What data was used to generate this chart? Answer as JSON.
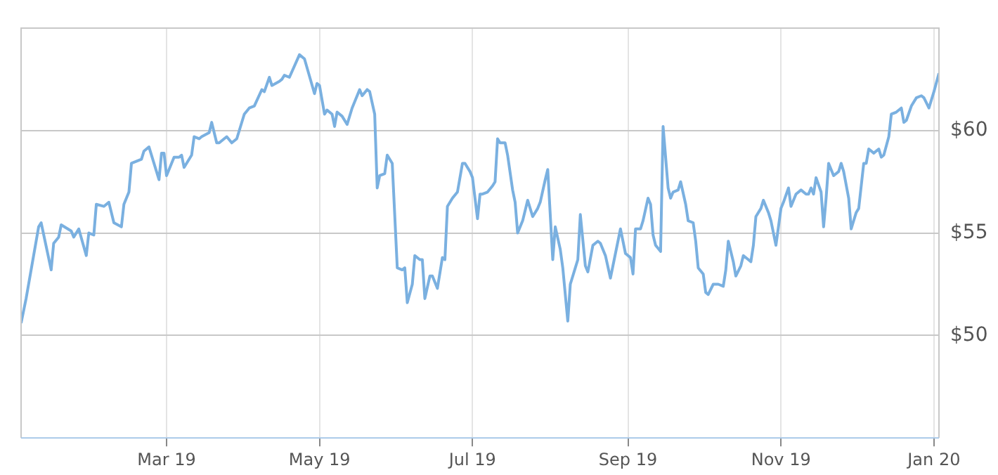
{
  "chart_data": {
    "type": "line",
    "x": [
      "2019-01-02",
      "2019-01-04",
      "2019-01-06",
      "2019-01-09",
      "2019-01-10",
      "2019-01-14",
      "2019-01-15",
      "2019-01-17",
      "2019-01-18",
      "2019-01-22",
      "2019-01-23",
      "2019-01-25",
      "2019-01-28",
      "2019-01-29",
      "2019-01-31",
      "2019-02-01",
      "2019-02-04",
      "2019-02-06",
      "2019-02-08",
      "2019-02-11",
      "2019-02-12",
      "2019-02-14",
      "2019-02-15",
      "2019-02-19",
      "2019-02-20",
      "2019-02-22",
      "2019-02-26",
      "2019-02-27",
      "2019-02-28",
      "2019-03-01",
      "2019-03-04",
      "2019-03-06",
      "2019-03-07",
      "2019-03-08",
      "2019-03-11",
      "2019-03-12",
      "2019-03-14",
      "2019-03-15",
      "2019-03-18",
      "2019-03-19",
      "2019-03-21",
      "2019-03-22",
      "2019-03-25",
      "2019-03-27",
      "2019-03-29",
      "2019-04-01",
      "2019-04-03",
      "2019-04-05",
      "2019-04-08",
      "2019-04-09",
      "2019-04-11",
      "2019-04-12",
      "2019-04-15",
      "2019-04-16",
      "2019-04-17",
      "2019-04-19",
      "2019-04-23",
      "2019-04-25",
      "2019-04-29",
      "2019-04-30",
      "2019-05-01",
      "2019-05-03",
      "2019-05-04",
      "2019-05-06",
      "2019-05-07",
      "2019-05-08",
      "2019-05-10",
      "2019-05-12",
      "2019-05-14",
      "2019-05-17",
      "2019-05-18",
      "2019-05-20",
      "2019-05-21",
      "2019-05-23",
      "2019-05-24",
      "2019-05-25",
      "2019-05-27",
      "2019-05-28",
      "2019-05-30",
      "2019-06-01",
      "2019-06-03",
      "2019-06-04",
      "2019-06-05",
      "2019-06-07",
      "2019-06-08",
      "2019-06-10",
      "2019-06-11",
      "2019-06-12",
      "2019-06-14",
      "2019-06-15",
      "2019-06-17",
      "2019-06-19",
      "2019-06-20",
      "2019-06-21",
      "2019-06-23",
      "2019-06-25",
      "2019-06-27",
      "2019-06-28",
      "2019-06-30",
      "2019-07-01",
      "2019-07-03",
      "2019-07-04",
      "2019-07-05",
      "2019-07-07",
      "2019-07-09",
      "2019-07-10",
      "2019-07-11",
      "2019-07-12",
      "2019-07-14",
      "2019-07-15",
      "2019-07-17",
      "2019-07-18",
      "2019-07-19",
      "2019-07-21",
      "2019-07-23",
      "2019-07-25",
      "2019-07-27",
      "2019-07-28",
      "2019-07-30",
      "2019-07-31",
      "2019-08-02",
      "2019-08-03",
      "2019-08-05",
      "2019-08-06",
      "2019-08-08",
      "2019-08-09",
      "2019-08-11",
      "2019-08-12",
      "2019-08-13",
      "2019-08-15",
      "2019-08-16",
      "2019-08-18",
      "2019-08-20",
      "2019-08-21",
      "2019-08-23",
      "2019-08-25",
      "2019-08-26",
      "2019-08-29",
      "2019-08-31",
      "2019-09-02",
      "2019-09-03",
      "2019-09-04",
      "2019-09-06",
      "2019-09-07",
      "2019-09-09",
      "2019-09-10",
      "2019-09-11",
      "2019-09-12",
      "2019-09-14",
      "2019-09-15",
      "2019-09-17",
      "2019-09-18",
      "2019-09-19",
      "2019-09-21",
      "2019-09-22",
      "2019-09-24",
      "2019-09-25",
      "2019-09-27",
      "2019-09-28",
      "2019-09-29",
      "2019-10-01",
      "2019-10-02",
      "2019-10-03",
      "2019-10-05",
      "2019-10-07",
      "2019-10-09",
      "2019-10-10",
      "2019-10-11",
      "2019-10-13",
      "2019-10-14",
      "2019-10-16",
      "2019-10-17",
      "2019-10-19",
      "2019-10-20",
      "2019-10-21",
      "2019-10-22",
      "2019-10-24",
      "2019-10-25",
      "2019-10-27",
      "2019-10-28",
      "2019-10-30",
      "2019-11-01",
      "2019-11-02",
      "2019-11-04",
      "2019-11-05",
      "2019-11-07",
      "2019-11-09",
      "2019-11-11",
      "2019-11-12",
      "2019-11-13",
      "2019-11-14",
      "2019-11-15",
      "2019-11-17",
      "2019-11-18",
      "2019-11-19",
      "2019-11-20",
      "2019-11-22",
      "2019-11-24",
      "2019-11-25",
      "2019-11-26",
      "2019-11-28",
      "2019-11-29",
      "2019-12-01",
      "2019-12-02",
      "2019-12-04",
      "2019-12-05",
      "2019-12-06",
      "2019-12-08",
      "2019-12-10",
      "2019-12-11",
      "2019-12-12",
      "2019-12-14",
      "2019-12-15",
      "2019-12-17",
      "2019-12-19",
      "2019-12-20",
      "2019-12-21",
      "2019-12-23",
      "2019-12-25",
      "2019-12-27",
      "2019-12-28",
      "2019-12-30",
      "2020-01-01",
      "2020-01-03"
    ],
    "series": [
      {
        "color": "#7ab0e0",
        "values": [
          50.6,
          51.8,
          53.2,
          55.3,
          55.5,
          53.2,
          54.5,
          54.8,
          55.4,
          55.1,
          54.8,
          55.2,
          53.9,
          55.0,
          54.9,
          56.4,
          56.3,
          56.5,
          55.5,
          55.3,
          56.4,
          57.0,
          58.4,
          58.6,
          59.0,
          59.2,
          57.6,
          58.9,
          58.9,
          57.8,
          58.7,
          58.7,
          58.8,
          58.2,
          58.8,
          59.7,
          59.6,
          59.7,
          59.9,
          60.4,
          59.4,
          59.4,
          59.7,
          59.4,
          59.6,
          60.8,
          61.1,
          61.2,
          62.0,
          61.9,
          62.6,
          62.2,
          62.4,
          62.5,
          62.7,
          62.6,
          63.7,
          63.5,
          61.8,
          62.3,
          62.2,
          60.8,
          61.0,
          60.8,
          60.2,
          60.9,
          60.7,
          60.3,
          61.1,
          62.0,
          61.7,
          62.0,
          61.9,
          60.8,
          57.2,
          57.8,
          57.9,
          58.8,
          58.4,
          53.3,
          53.2,
          53.3,
          51.6,
          52.5,
          53.9,
          53.7,
          53.7,
          51.8,
          52.9,
          52.9,
          52.3,
          53.8,
          53.7,
          56.3,
          56.7,
          57.0,
          58.4,
          58.4,
          58.0,
          57.7,
          55.7,
          56.9,
          56.9,
          57.0,
          57.3,
          57.5,
          59.6,
          59.4,
          59.4,
          58.8,
          57.1,
          56.5,
          55.0,
          55.6,
          56.6,
          55.8,
          56.2,
          56.5,
          57.6,
          58.1,
          53.7,
          55.3,
          54.2,
          53.3,
          50.7,
          52.5,
          53.3,
          53.7,
          55.9,
          53.4,
          53.1,
          54.4,
          54.6,
          54.5,
          53.9,
          52.8,
          53.4,
          55.2,
          54.0,
          53.8,
          53.0,
          55.2,
          55.2,
          55.6,
          56.7,
          56.4,
          54.9,
          54.4,
          54.1,
          60.2,
          57.2,
          56.7,
          57.0,
          57.1,
          57.5,
          56.4,
          55.6,
          55.5,
          54.6,
          53.3,
          53.0,
          52.1,
          52.0,
          52.5,
          52.5,
          52.4,
          53.2,
          54.6,
          53.6,
          52.9,
          53.4,
          53.9,
          53.7,
          53.6,
          54.4,
          55.8,
          56.2,
          56.6,
          56.0,
          55.6,
          54.4,
          56.2,
          56.5,
          57.2,
          56.3,
          56.9,
          57.1,
          56.9,
          56.9,
          57.2,
          56.9,
          57.7,
          57.0,
          55.3,
          56.7,
          58.4,
          57.8,
          58.0,
          58.4,
          58.0,
          56.7,
          55.2,
          56.0,
          56.2,
          58.4,
          58.4,
          59.1,
          58.9,
          59.1,
          58.7,
          58.8,
          59.7,
          60.8,
          60.9,
          61.1,
          60.4,
          60.5,
          61.2,
          61.6,
          61.7,
          61.6,
          61.1,
          61.9,
          62.8
        ]
      }
    ],
    "xlim": [
      "2019-01-02",
      "2020-01-03"
    ],
    "xticks": [
      {
        "value": "2019-03-01",
        "label": "Mar 19"
      },
      {
        "value": "2019-05-01",
        "label": "May 19"
      },
      {
        "value": "2019-07-01",
        "label": "Jul 19"
      },
      {
        "value": "2019-09-01",
        "label": "Sep 19"
      },
      {
        "value": "2019-11-01",
        "label": "Nov 19"
      },
      {
        "value": "2020-01-01",
        "label": "Jan 20"
      }
    ],
    "ylim": [
      45,
      65
    ],
    "yticks": [
      {
        "value": 50,
        "label": "$50"
      },
      {
        "value": 55,
        "label": "$55"
      },
      {
        "value": 60,
        "label": "$60"
      }
    ],
    "grid": true,
    "legend": false,
    "marker": "none",
    "line_style": "solid"
  }
}
